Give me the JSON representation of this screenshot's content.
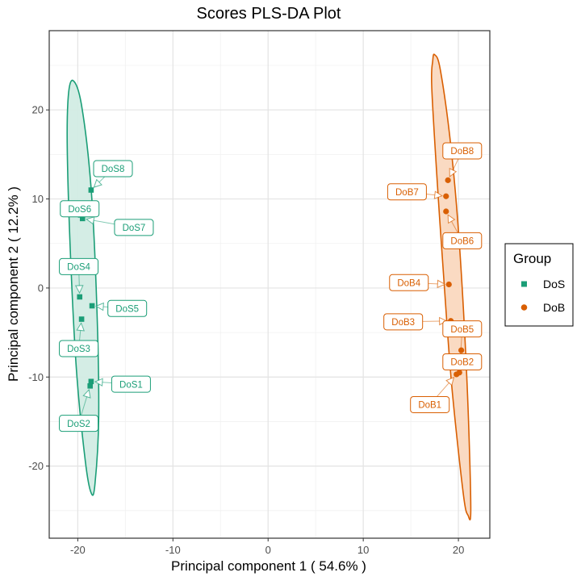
{
  "chart_data": {
    "type": "scatter",
    "title": "Scores PLS-DA Plot",
    "xlabel": "Principal component 1 ( 54.6% )",
    "ylabel": "Principal component 2 ( 12.2% )",
    "xlim": [
      -23,
      23.3
    ],
    "ylim": [
      -28.1,
      28.9
    ],
    "x_ticks": [
      -20,
      -10,
      0,
      10,
      20
    ],
    "y_ticks": [
      -20,
      -10,
      0,
      10,
      20
    ],
    "x_tick_labels": [
      "-20",
      "-10",
      "0",
      "10",
      "20"
    ],
    "y_tick_labels": [
      "-20",
      "-10",
      "0",
      "10",
      "20"
    ],
    "grid": true,
    "legend": {
      "title": "Group",
      "placement": "right",
      "entries": [
        {
          "label": "DoS",
          "shape": "square",
          "color": "#1b9e77"
        },
        {
          "label": "DoB",
          "shape": "circle",
          "color": "#d95f02"
        }
      ]
    },
    "series": [
      {
        "name": "DoS",
        "color": "#1b9e77",
        "fill": "#d2ece4",
        "shape": "square",
        "ellipse": {
          "polygon": [
            [
              -20.5,
              23.3
            ],
            [
              -19.6,
              20.5
            ],
            [
              -18.6,
              11.2
            ],
            [
              -18.0,
              -2.0
            ],
            [
              -17.8,
              -14.5
            ],
            [
              -18.2,
              -22.1
            ],
            [
              -18.6,
              -23.0
            ],
            [
              -19.2,
              -19.5
            ],
            [
              -20.1,
              -9.8
            ],
            [
              -20.7,
              2.0
            ],
            [
              -21.1,
              15.2
            ],
            [
              -21.0,
              21.5
            ]
          ]
        },
        "points": [
          {
            "id": "DoS1",
            "x": -18.6,
            "y": -10.5
          },
          {
            "id": "DoS2",
            "x": -18.7,
            "y": -11.0
          },
          {
            "id": "DoS3",
            "x": -19.6,
            "y": -3.5
          },
          {
            "id": "DoS4",
            "x": -19.8,
            "y": -1.0
          },
          {
            "id": "DoS5",
            "x": -18.5,
            "y": -2.0
          },
          {
            "id": "DoS6",
            "x": -19.7,
            "y": 8.2
          },
          {
            "id": "DoS7",
            "x": -19.5,
            "y": 7.8
          },
          {
            "id": "DoS8",
            "x": -18.6,
            "y": 11.0
          }
        ],
        "labels": [
          {
            "text": "DoS1",
            "x": -14.4,
            "y": -10.8
          },
          {
            "text": "DoS2",
            "x": -19.9,
            "y": -15.2
          },
          {
            "text": "DoS3",
            "x": -19.9,
            "y": -6.8
          },
          {
            "text": "DoS4",
            "x": -19.9,
            "y": 2.4
          },
          {
            "text": "DoS5",
            "x": -14.8,
            "y": -2.3
          },
          {
            "text": "DoS6",
            "x": -19.8,
            "y": 8.9
          },
          {
            "text": "DoS7",
            "x": -14.1,
            "y": 6.8
          },
          {
            "text": "DoS8",
            "x": -16.3,
            "y": 13.4
          }
        ]
      },
      {
        "name": "DoB",
        "color": "#d95f02",
        "fill": "#fad8bf",
        "shape": "circle",
        "ellipse": {
          "polygon": [
            [
              17.5,
              26.2
            ],
            [
              18.1,
              24.5
            ],
            [
              19.2,
              16.0
            ],
            [
              20.1,
              5.0
            ],
            [
              20.9,
              -10.5
            ],
            [
              21.3,
              -24.5
            ],
            [
              21.0,
              -25.5
            ],
            [
              20.5,
              -23.0
            ],
            [
              19.3,
              -11.0
            ],
            [
              18.5,
              0.5
            ],
            [
              17.8,
              11.5
            ],
            [
              17.2,
              22.5
            ],
            [
              17.3,
              25.5
            ]
          ]
        },
        "points": [
          {
            "id": "DoB1",
            "x": 19.8,
            "y": -9.7
          },
          {
            "id": "DoB2",
            "x": 20.3,
            "y": -7.0
          },
          {
            "id": "DoB3",
            "x": 19.2,
            "y": -3.7
          },
          {
            "id": "DoB4",
            "x": 19.0,
            "y": 0.4
          },
          {
            "id": "DoB5",
            "x": 20.1,
            "y": -9.5
          },
          {
            "id": "DoB6",
            "x": 18.7,
            "y": 8.6
          },
          {
            "id": "DoB7",
            "x": 18.7,
            "y": 10.3
          },
          {
            "id": "DoB8",
            "x": 18.9,
            "y": 12.1
          }
        ],
        "labels": [
          {
            "text": "DoB1",
            "x": 17.0,
            "y": -13.1
          },
          {
            "text": "DoB2",
            "x": 20.4,
            "y": -8.3
          },
          {
            "text": "DoB3",
            "x": 14.2,
            "y": -3.8
          },
          {
            "text": "DoB4",
            "x": 14.8,
            "y": 0.6
          },
          {
            "text": "DoB5",
            "x": 20.4,
            "y": -4.6
          },
          {
            "text": "DoB6",
            "x": 20.4,
            "y": 5.3
          },
          {
            "text": "DoB7",
            "x": 14.6,
            "y": 10.8
          },
          {
            "text": "DoB8",
            "x": 20.4,
            "y": 15.4
          }
        ]
      }
    ]
  }
}
